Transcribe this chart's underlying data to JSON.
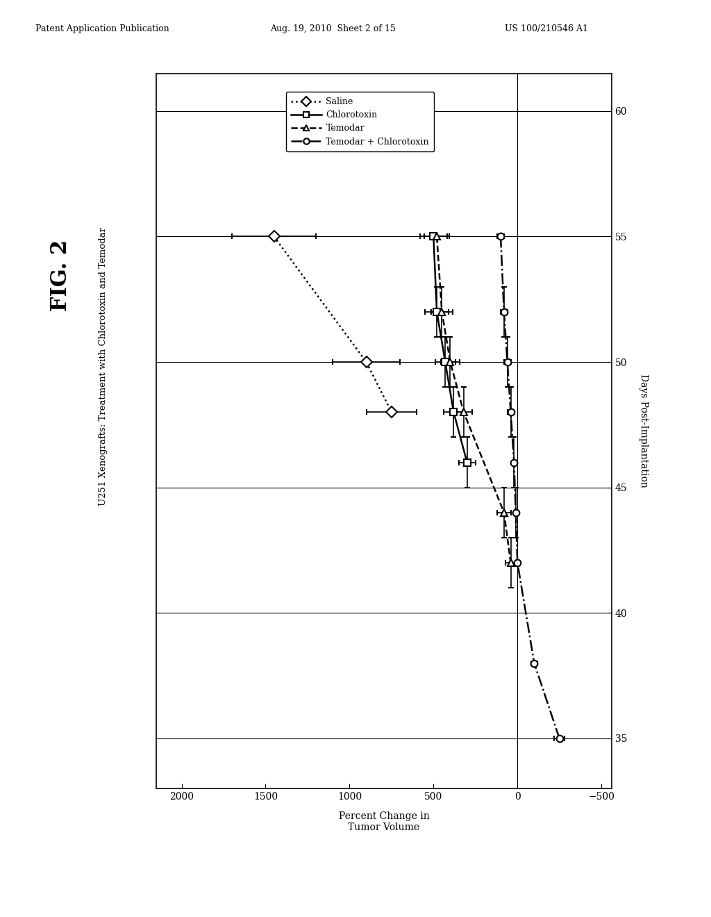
{
  "header_left": "Patent Application Publication",
  "header_mid": "Aug. 19, 2010  Sheet 2 of 15",
  "header_right": "US 100/210546 A1",
  "fig_label": "FIG. 2",
  "chart_title": "U251 Xenografts: Treatment with Chlorotoxin and Temodar",
  "xlabel": "Percent Change in\nTumor Volume",
  "ylabel": "Days Post-Implantation",
  "xlim": [
    2150,
    -560
  ],
  "ylim": [
    33.0,
    61.5
  ],
  "xticks": [
    2000,
    1500,
    1000,
    500,
    0,
    -500
  ],
  "yticks": [
    35,
    40,
    45,
    50,
    55,
    60
  ],
  "series": {
    "saline": {
      "days": [
        55,
        50,
        48
      ],
      "pct": [
        1450,
        900,
        750
      ],
      "pct_err": [
        250,
        200,
        150
      ],
      "day_err": [
        0,
        0,
        0
      ],
      "color": "black",
      "linestyle": "dotted",
      "marker": "D",
      "markersize": 8,
      "label": "Saline",
      "mfc": "white",
      "linewidth": 1.8,
      "markeredgewidth": 1.5
    },
    "chlorotoxin": {
      "days": [
        55,
        52,
        50,
        48,
        46
      ],
      "pct": [
        500,
        480,
        430,
        380,
        300
      ],
      "pct_err": [
        80,
        70,
        60,
        60,
        50
      ],
      "day_err": [
        0,
        1.0,
        1.0,
        1.0,
        1.0
      ],
      "color": "black",
      "linestyle": "solid",
      "marker": "s",
      "markersize": 7,
      "label": "Chlorotoxin",
      "mfc": "white",
      "linewidth": 1.8,
      "markeredgewidth": 1.5
    },
    "temodar": {
      "days": [
        55,
        52,
        50,
        48,
        44,
        42
      ],
      "pct": [
        480,
        450,
        400,
        320,
        80,
        40
      ],
      "pct_err": [
        75,
        65,
        55,
        50,
        40,
        30
      ],
      "day_err": [
        0,
        1.0,
        1.0,
        1.0,
        1.0,
        1.0
      ],
      "color": "black",
      "linestyle": "dashed",
      "marker": "^",
      "markersize": 7,
      "label": "Temodar",
      "mfc": "white",
      "linewidth": 1.8,
      "markeredgewidth": 1.5
    },
    "combo": {
      "days": [
        55,
        52,
        50,
        48,
        46,
        44,
        42,
        38,
        35
      ],
      "pct": [
        100,
        80,
        60,
        40,
        20,
        10,
        0,
        -100,
        -250
      ],
      "pct_err": [
        20,
        20,
        20,
        20,
        15,
        10,
        10,
        20,
        30
      ],
      "day_err": [
        0,
        1.0,
        1.0,
        1.0,
        1.0,
        1.0,
        0,
        0,
        0
      ],
      "color": "black",
      "linestyle": "dashdot",
      "marker": "o",
      "markersize": 7,
      "label": "Temodar + Chlorotoxin",
      "mfc": "white",
      "linewidth": 1.8,
      "markeredgewidth": 1.5
    }
  },
  "background_color": "#ffffff"
}
